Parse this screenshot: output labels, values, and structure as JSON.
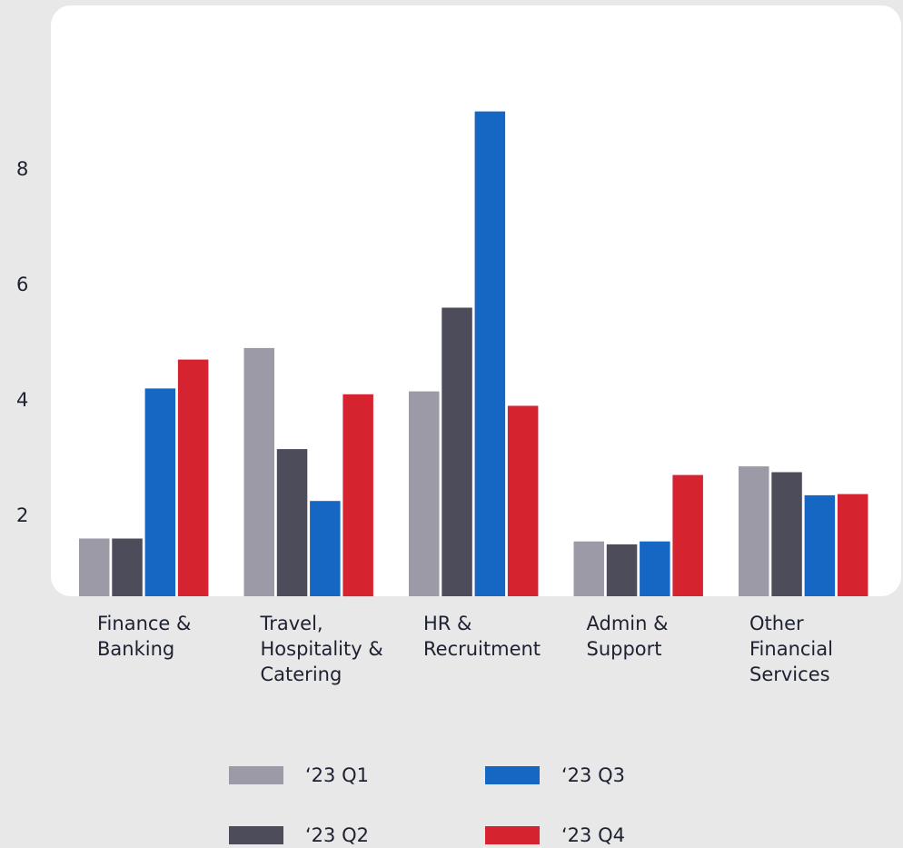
{
  "chart_data": {
    "type": "bar",
    "title": "",
    "xlabel": "",
    "ylabel": "",
    "ylim": [
      0.6,
      10.8
    ],
    "yticks": [
      "2",
      "4",
      "6",
      "8"
    ],
    "grid": false,
    "legend_position": "bottom",
    "categories": [
      [
        "Finance &",
        "Banking"
      ],
      [
        "Travel,",
        "Hospitality &",
        "Catering"
      ],
      [
        "HR &",
        "Recruitment"
      ],
      [
        "Admin &",
        "Support"
      ],
      [
        "Other",
        "Financial",
        "Services"
      ]
    ],
    "series": [
      {
        "name": "‘23 Q1",
        "color": "#9b9aa6",
        "values": [
          1.6,
          4.9,
          4.15,
          1.55,
          2.85
        ]
      },
      {
        "name": "‘23 Q2",
        "color": "#4d4c5a",
        "values": [
          1.6,
          3.15,
          5.6,
          1.5,
          2.75
        ]
      },
      {
        "name": "‘23 Q3",
        "color": "#1666c3",
        "values": [
          4.2,
          2.25,
          9.0,
          1.55,
          2.35
        ]
      },
      {
        "name": "‘23 Q4",
        "color": "#d52330",
        "values": [
          4.7,
          4.1,
          3.9,
          2.7,
          2.37
        ]
      }
    ]
  }
}
